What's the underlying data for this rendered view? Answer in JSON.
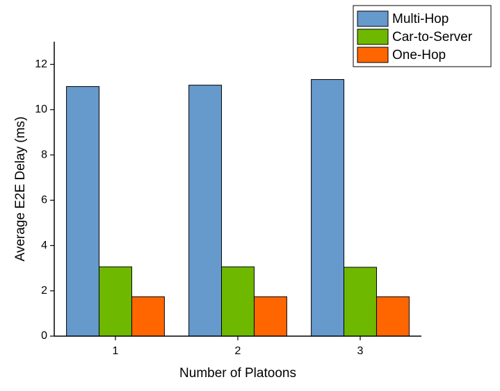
{
  "chart_data": {
    "type": "bar",
    "xlabel": "Number of Platoons",
    "ylabel": "Average E2E Delay (ms)",
    "categories": [
      "1",
      "2",
      "3"
    ],
    "series": [
      {
        "name": "Multi-Hop",
        "color": "#6699cc",
        "values": [
          11.02,
          11.08,
          11.33
        ]
      },
      {
        "name": "Car-to-Server",
        "color": "#6fb800",
        "values": [
          3.06,
          3.06,
          3.04
        ]
      },
      {
        "name": "One-Hop",
        "color": "#ff6600",
        "values": [
          1.74,
          1.74,
          1.74
        ]
      }
    ],
    "ylim": [
      0,
      13
    ],
    "yticks": [
      0,
      2,
      4,
      6,
      8,
      10,
      12
    ],
    "legend": "upper right",
    "grid": false
  }
}
